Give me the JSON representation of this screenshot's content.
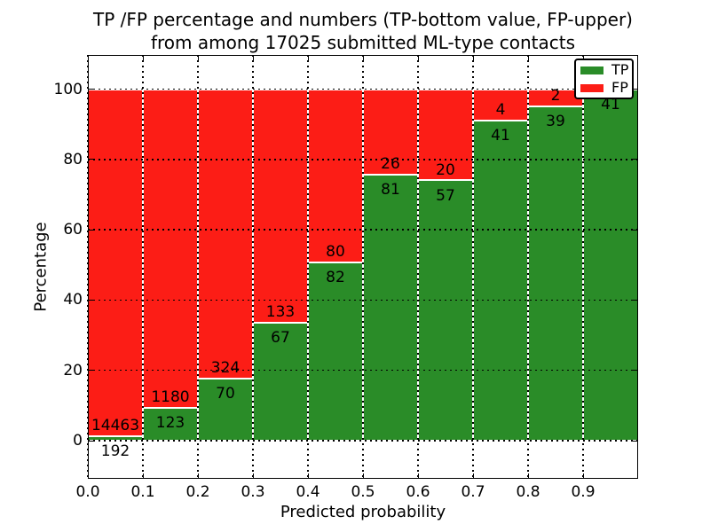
{
  "figure": {
    "title_line1": "TP /FP percentage and numbers (TP-bottom value, FP-upper)",
    "title_line2": "from among 17025 submitted ML-type contacts"
  },
  "chart_data": {
    "type": "bar",
    "stacked": true,
    "normalization": "each bin scaled so TP+FP = 100%",
    "title": "TP /FP percentage and numbers (TP-bottom value, FP-upper) from among 17025 submitted ML-type contacts",
    "xlabel": "Predicted probability",
    "ylabel": "Percentage",
    "total_submitted_contacts": 17025,
    "bins": [
      0.0,
      0.1,
      0.2,
      0.3,
      0.4,
      0.5,
      0.6,
      0.7,
      0.8,
      0.9
    ],
    "bin_width": 0.1,
    "series": [
      {
        "name": "TP",
        "color": "#2a8c28",
        "counts": [
          192,
          123,
          70,
          67,
          82,
          81,
          57,
          41,
          39,
          41
        ]
      },
      {
        "name": "FP",
        "color": "#fc1d16",
        "counts": [
          14463,
          1180,
          324,
          133,
          80,
          26,
          20,
          4,
          2,
          0
        ]
      }
    ],
    "tp_percent_of_bin": [
      1.3,
      9.4,
      17.8,
      33.5,
      50.6,
      75.7,
      74.0,
      91.1,
      95.1,
      100.0
    ],
    "xticks": [
      "0.0",
      "0.1",
      "0.2",
      "0.3",
      "0.4",
      "0.5",
      "0.6",
      "0.7",
      "0.8",
      "0.9"
    ],
    "yticks": [
      "0",
      "20",
      "40",
      "60",
      "80",
      "100"
    ],
    "ytick_values": [
      0,
      20,
      40,
      60,
      80,
      100
    ],
    "xlim": [
      0.0,
      1.0
    ],
    "ylim": [
      -10.8,
      109.7
    ],
    "grid": {
      "style": "dotted",
      "color": "#000000"
    },
    "bar_edge_color": "#ffffff",
    "legend": {
      "position": "upper right",
      "entries": [
        {
          "label": "TP"
        },
        {
          "label": "FP"
        }
      ]
    }
  }
}
